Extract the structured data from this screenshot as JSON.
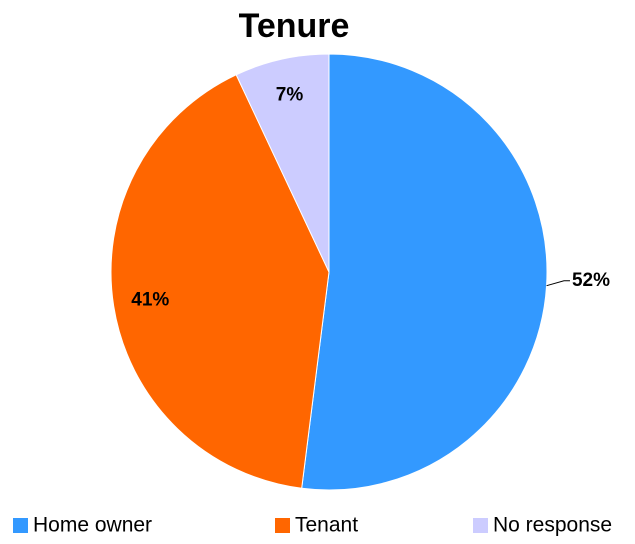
{
  "chart_data": {
    "type": "pie",
    "title": "Tenure",
    "categories": [
      "Home owner",
      "Tenant",
      "No response"
    ],
    "values": [
      52,
      41,
      7
    ],
    "value_labels": [
      "52%",
      "41%",
      "7%"
    ],
    "colors": [
      "#3399ff",
      "#ff6600",
      "#ccccff"
    ],
    "legend": "bottom"
  }
}
